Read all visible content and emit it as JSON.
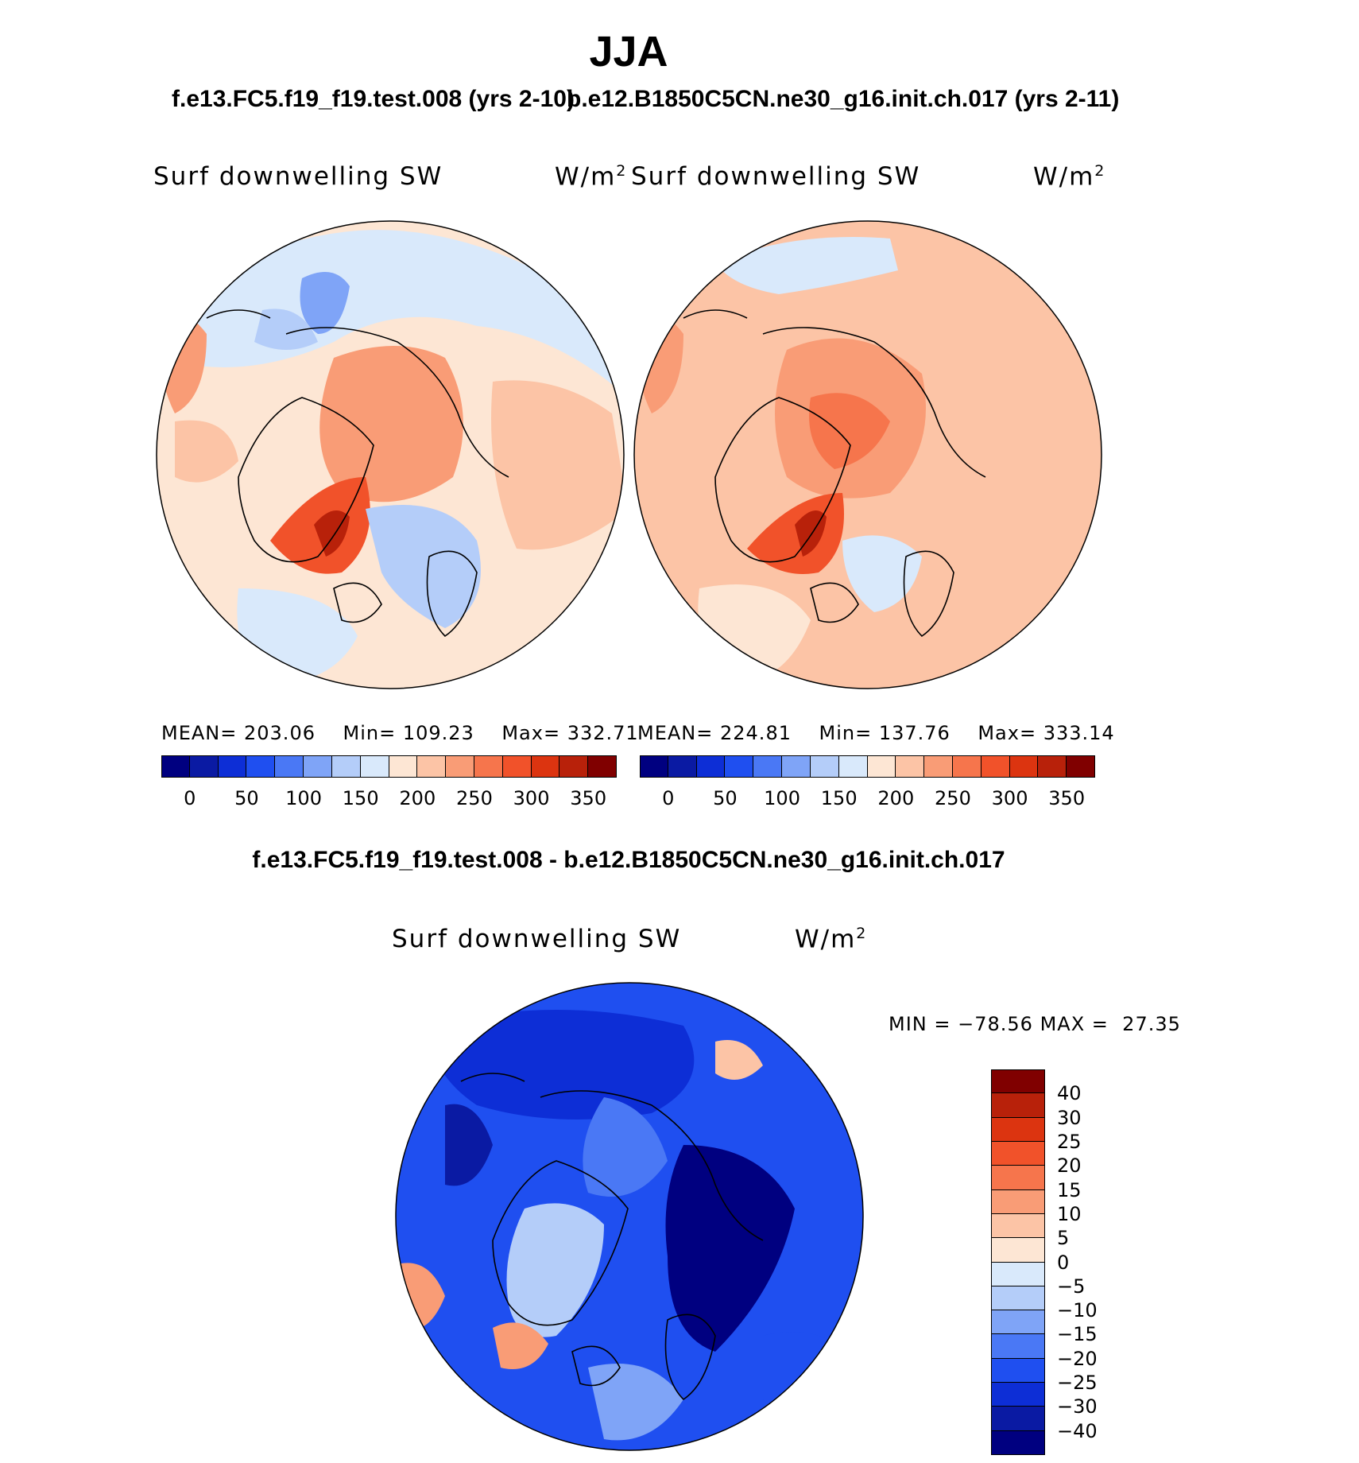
{
  "header": {
    "title": "JJA",
    "case1": "f.e13.FC5.f19_f19.test.008 (yrs 2-10)",
    "case2": "b.e12.B1850C5CN.ne30_g16.init.ch.017 (yrs 2-11)",
    "diff_title": "f.e13.FC5.f19_f19.test.008 - b.e12.B1850C5CN.ne30_g16.init.ch.017"
  },
  "panels": [
    {
      "variable": "Surf downwelling SW",
      "unit_base": "W/m",
      "unit_exp": "2",
      "mean_label": "MEAN=",
      "mean": "203.06",
      "min_label": "Min=",
      "min": "109.23",
      "max_label": "Max=",
      "max": "332.71"
    },
    {
      "variable": "Surf downwelling SW",
      "unit_base": "W/m",
      "unit_exp": "2",
      "mean_label": "MEAN=",
      "mean": "224.81",
      "min_label": "Min=",
      "min": "137.76",
      "max_label": "Max=",
      "max": "333.14"
    },
    {
      "variable": "Surf downwelling SW",
      "unit_base": "W/m",
      "unit_exp": "2",
      "min_label": "MIN =",
      "min": "−78.56",
      "max_label": "MAX =",
      "max": "27.35"
    }
  ],
  "colorbars": {
    "absolute": {
      "colors": [
        "#000080",
        "#0a1aa3",
        "#0d2ed6",
        "#1f4ff0",
        "#4a78f5",
        "#7fa4f7",
        "#b4cdf9",
        "#d9e9fb",
        "#fde6d4",
        "#fcc4a6",
        "#f99c76",
        "#f6754c",
        "#f1522a",
        "#dc3410",
        "#b8210a",
        "#800000"
      ],
      "tick_labels": [
        "0",
        "50",
        "100",
        "150",
        "200",
        "250",
        "300",
        "350"
      ]
    },
    "difference": {
      "colors": [
        "#000080",
        "#0a1aa3",
        "#0d2ed6",
        "#1f4ff0",
        "#4a78f5",
        "#7fa4f7",
        "#b4cdf9",
        "#d9e9fb",
        "#fde6d4",
        "#fcc4a6",
        "#f99c76",
        "#f6754c",
        "#f1522a",
        "#dc3410",
        "#b8210a",
        "#800000"
      ],
      "tick_labels": [
        "40",
        "30",
        "25",
        "20",
        "15",
        "10",
        "5",
        "0",
        "−5",
        "−10",
        "−15",
        "−20",
        "−25",
        "−30",
        "−40"
      ]
    }
  },
  "chart_data": [
    {
      "type": "heatmap",
      "projection": "north polar stereographic",
      "title": "Surf downwelling SW",
      "units": "W/m2",
      "stats": {
        "mean": 203.06,
        "min": 109.23,
        "max": 332.71
      },
      "contour_levels": [
        0,
        25,
        50,
        75,
        100,
        125,
        150,
        175,
        200,
        225,
        250,
        275,
        300,
        325,
        350
      ]
    },
    {
      "type": "heatmap",
      "projection": "north polar stereographic",
      "title": "Surf downwelling SW",
      "units": "W/m2",
      "stats": {
        "mean": 224.81,
        "min": 137.76,
        "max": 333.14
      },
      "contour_levels": [
        0,
        25,
        50,
        75,
        100,
        125,
        150,
        175,
        200,
        225,
        250,
        275,
        300,
        325,
        350
      ]
    },
    {
      "type": "heatmap",
      "projection": "north polar stereographic",
      "title": "Surf downwelling SW",
      "units": "W/m2",
      "stats": {
        "min": -78.56,
        "max": 27.35
      },
      "contour_levels": [
        -40,
        -30,
        -25,
        -20,
        -15,
        -10,
        -5,
        0,
        5,
        10,
        15,
        20,
        25,
        30,
        40
      ]
    }
  ]
}
